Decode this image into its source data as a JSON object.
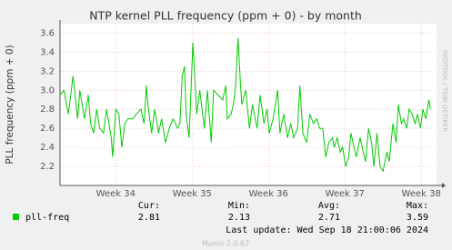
{
  "chart_data": {
    "type": "line",
    "title": "NTP kernel PLL frequency (ppm + 0) - by month",
    "y_label": "PLL frequency (ppm + 0)",
    "side_label": "RRDTOOL / TOBI OETIKER",
    "footer": "Munin 2.0.67",
    "last_update": "Last update: Wed Sep 18 21:00:06 2024",
    "xlim": [
      33.27,
      38.2
    ],
    "ylim": [
      2.0,
      3.7
    ],
    "xticks": [
      {
        "value": 34,
        "label": "Week 34"
      },
      {
        "value": 35,
        "label": "Week 35"
      },
      {
        "value": 36,
        "label": "Week 36"
      },
      {
        "value": 37,
        "label": "Week 37"
      },
      {
        "value": 38,
        "label": "Week 38"
      }
    ],
    "yticks": [
      2.2,
      2.4,
      2.6,
      2.8,
      {
        "value": 3,
        "label": "3.0"
      },
      3.2,
      3.4,
      3.6
    ],
    "grid": true,
    "x": [
      33.27,
      33.32,
      33.38,
      33.44,
      33.5,
      33.53,
      33.59,
      33.64,
      33.67,
      33.71,
      33.75,
      33.79,
      33.84,
      33.88,
      33.94,
      33.96,
      34.0,
      34.04,
      34.08,
      34.12,
      34.16,
      34.22,
      34.27,
      34.33,
      34.37,
      34.4,
      34.42,
      34.47,
      34.51,
      34.56,
      34.6,
      34.65,
      34.7,
      34.75,
      34.81,
      34.84,
      34.87,
      34.9,
      34.92,
      34.96,
      35.01,
      35.03,
      35.06,
      35.1,
      35.16,
      35.2,
      35.25,
      35.28,
      35.34,
      35.4,
      35.44,
      35.46,
      35.51,
      35.54,
      35.57,
      35.6,
      35.63,
      35.65,
      35.7,
      35.75,
      35.79,
      35.85,
      35.89,
      35.94,
      35.98,
      36.01,
      36.06,
      36.12,
      36.15,
      36.2,
      36.25,
      36.29,
      36.33,
      36.38,
      36.41,
      36.45,
      36.5,
      36.54,
      36.59,
      36.63,
      36.67,
      36.71,
      36.75,
      36.79,
      36.84,
      36.86,
      36.9,
      36.94,
      36.97,
      37.01,
      37.05,
      37.08,
      37.12,
      37.15,
      37.2,
      37.24,
      37.27,
      37.31,
      37.35,
      37.38,
      37.42,
      37.46,
      37.5,
      37.55,
      37.58,
      37.63,
      37.67,
      37.7,
      37.74,
      37.77,
      37.81,
      37.84,
      37.88,
      37.92,
      37.95,
      37.99,
      38.02,
      38.06,
      38.1,
      38.12
    ],
    "series": [
      {
        "name": "pll-freq",
        "color": "#00cc00",
        "values": [
          2.95,
          3.0,
          2.75,
          3.15,
          2.7,
          3.0,
          2.7,
          2.95,
          2.65,
          2.55,
          2.8,
          2.6,
          2.55,
          2.8,
          2.5,
          2.3,
          2.8,
          2.75,
          2.4,
          2.65,
          2.7,
          2.7,
          2.75,
          2.8,
          2.65,
          3.05,
          2.85,
          2.55,
          2.8,
          2.55,
          2.7,
          2.45,
          2.6,
          2.7,
          2.6,
          2.65,
          3.15,
          3.25,
          2.75,
          2.5,
          3.5,
          3.2,
          2.75,
          3.0,
          2.6,
          3.0,
          2.45,
          3.0,
          2.95,
          2.9,
          3.05,
          2.7,
          2.75,
          2.85,
          3.05,
          3.55,
          3.1,
          2.85,
          3.0,
          2.6,
          2.85,
          2.6,
          2.95,
          2.65,
          2.8,
          2.55,
          2.7,
          3.0,
          2.55,
          2.75,
          2.5,
          2.65,
          2.5,
          2.6,
          3.05,
          2.55,
          2.45,
          2.75,
          2.65,
          2.7,
          2.6,
          2.6,
          2.3,
          2.45,
          2.5,
          2.4,
          2.5,
          2.35,
          2.4,
          2.2,
          2.3,
          2.55,
          2.4,
          2.3,
          2.5,
          2.35,
          2.25,
          2.6,
          2.45,
          2.2,
          2.55,
          2.2,
          2.15,
          2.35,
          2.25,
          2.65,
          2.45,
          2.85,
          2.65,
          2.7,
          2.6,
          2.8,
          2.75,
          2.65,
          2.75,
          2.6,
          2.8,
          2.7,
          2.9,
          2.8
        ]
      }
    ],
    "stats": {
      "headers": [
        "Cur:",
        "Min:",
        "Avg:",
        "Max:"
      ],
      "values": [
        2.81,
        2.13,
        2.71,
        3.59
      ]
    }
  }
}
